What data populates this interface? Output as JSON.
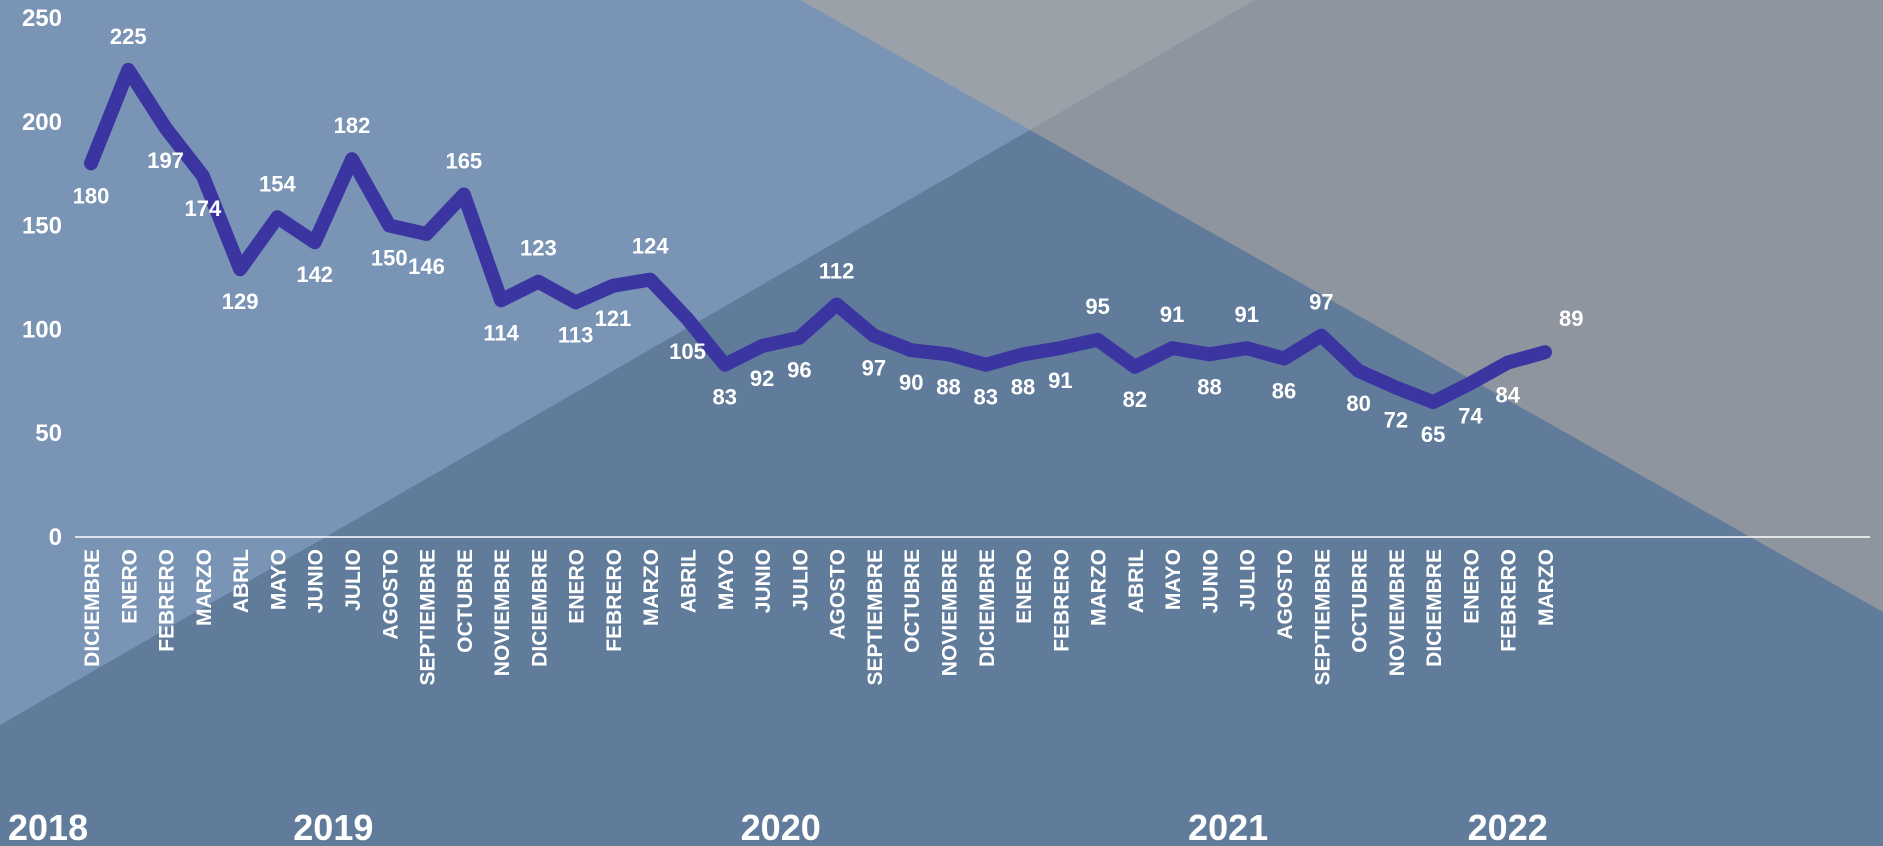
{
  "chart_data": {
    "type": "line",
    "color": "#3a35a0",
    "grid": false,
    "ylim": [
      0,
      250
    ],
    "yticks": [
      0,
      50,
      100,
      150,
      200,
      250
    ],
    "groups": [
      {
        "name": "2018",
        "categories": [
          "DICIEMBRE"
        ],
        "values": [
          180
        ]
      },
      {
        "name": "2019",
        "categories": [
          "ENERO",
          "FEBRERO",
          "MARZO",
          "ABRIL",
          "MAYO",
          "JUNIO",
          "JULIO",
          "AGOSTO",
          "SEPTIEMBRE",
          "OCTUBRE",
          "NOVIEMBRE",
          "DICIEMBRE"
        ],
        "values": [
          225,
          197,
          174,
          129,
          154,
          142,
          182,
          150,
          146,
          165,
          114,
          123
        ]
      },
      {
        "name": "2020",
        "categories": [
          "ENERO",
          "FEBRERO",
          "MARZO",
          "ABRIL",
          "MAYO",
          "JUNIO",
          "JULIO",
          "AGOSTO",
          "SEPTIEMBRE",
          "OCTUBRE",
          "NOVIEMBRE",
          "DICIEMBRE"
        ],
        "values": [
          113,
          121,
          124,
          105,
          83,
          92,
          96,
          112,
          97,
          90,
          88,
          83
        ]
      },
      {
        "name": "2021",
        "categories": [
          "ENERO",
          "FEBRERO",
          "MARZO",
          "ABRIL",
          "MAYO",
          "JUNIO",
          "JULIO",
          "AGOSTO",
          "SEPTIEMBRE",
          "OCTUBRE",
          "NOVIEMBRE",
          "DICIEMBRE"
        ],
        "values": [
          88,
          91,
          95,
          82,
          91,
          88,
          91,
          86,
          97,
          80,
          72,
          65
        ]
      },
      {
        "name": "2022",
        "categories": [
          "ENERO",
          "FEBRERO",
          "MARZO"
        ],
        "values": [
          74,
          84,
          89
        ]
      }
    ]
  }
}
